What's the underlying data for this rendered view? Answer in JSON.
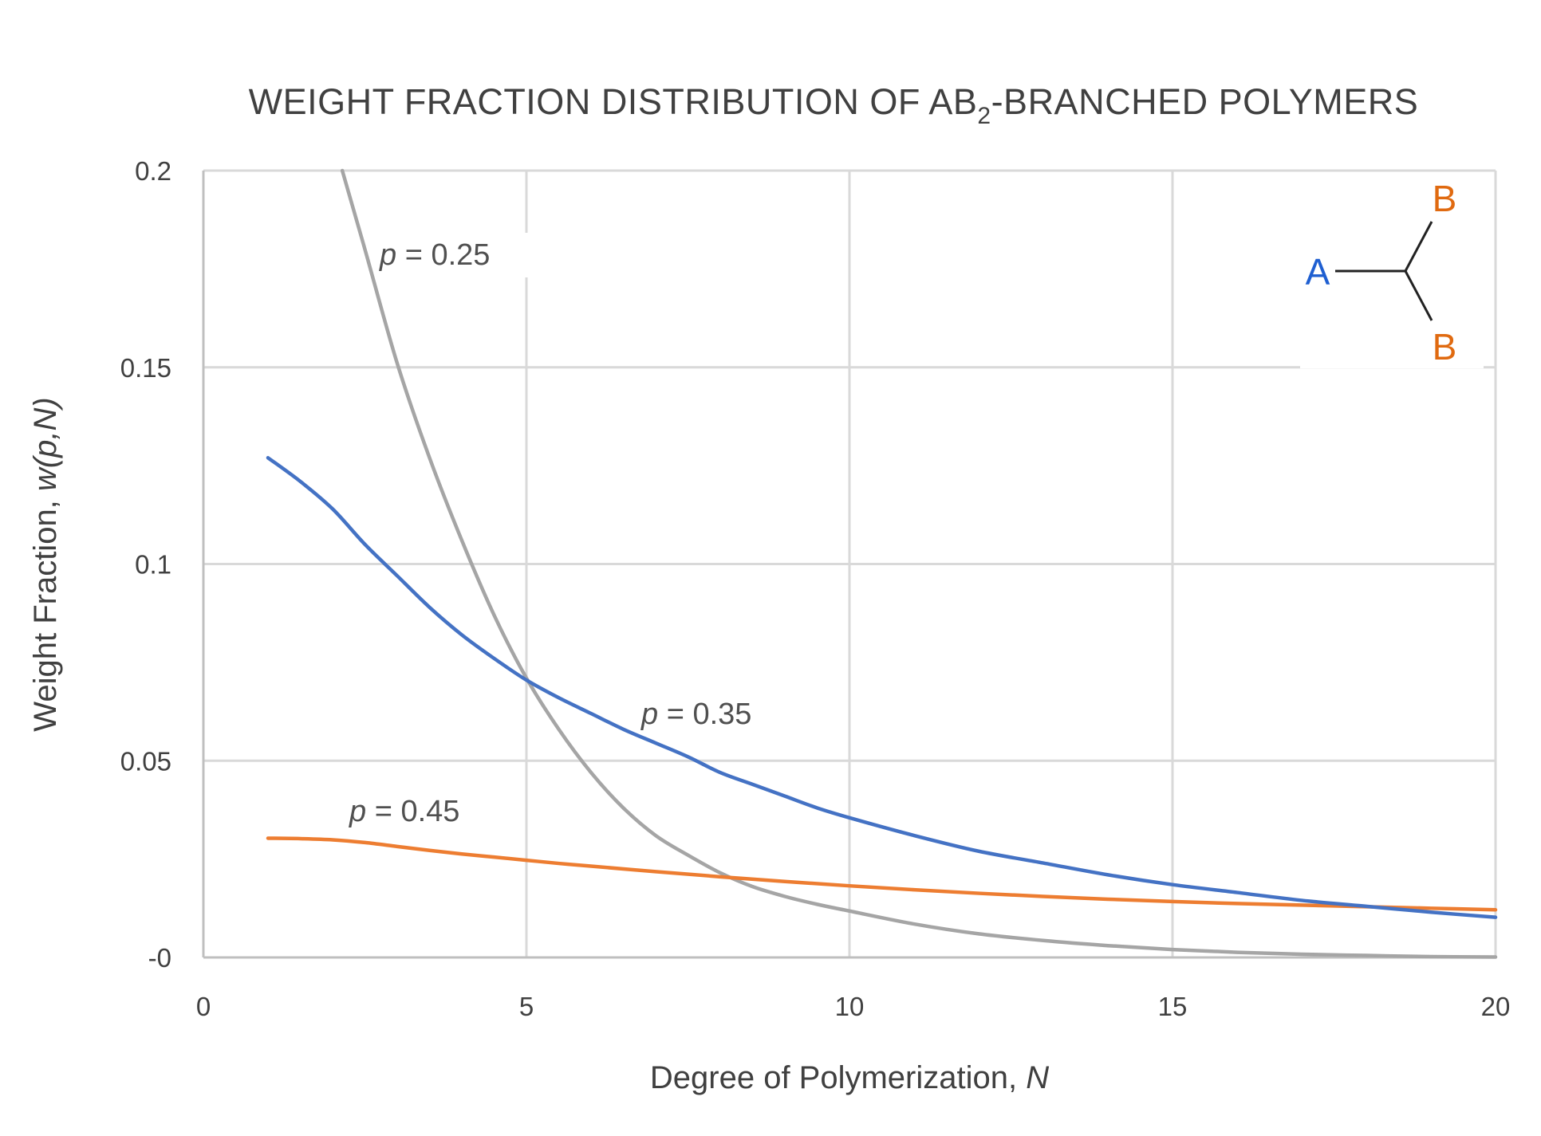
{
  "colors": {
    "p025": "#a5a5a5",
    "p035": "#4472c4",
    "p045": "#ed7d31",
    "atom_a": "#1f5fd1",
    "atom_b": "#e06a10",
    "text": "#404040"
  },
  "chart_data": {
    "type": "line",
    "title": {
      "main": "WEIGHT FRACTION DISTRIBUTION OF AB",
      "sub": "2",
      "rest": "-BRANCHED  POLYMERS"
    },
    "xlabel": {
      "text": "Degree of Polymerization, ",
      "var": "N"
    },
    "ylabel": {
      "text": "Weight Fraction, ",
      "var": "w(p,N)"
    },
    "xlim": [
      0,
      20
    ],
    "ylim": [
      0,
      0.2
    ],
    "x_ticks": [
      "0",
      "5",
      "10",
      "15",
      "20"
    ],
    "y_ticks": [
      "-0",
      "0.05",
      "0.1",
      "0.15",
      "0.2"
    ],
    "grid": true,
    "series": [
      {
        "name_var": "p",
        "name_rest": " = 0.25",
        "color_key": "p025",
        "x": [
          2.15,
          2.5,
          3,
          3.5,
          4,
          4.5,
          5,
          5.5,
          6,
          6.5,
          7,
          7.5,
          8,
          8.5,
          9,
          9.5,
          10,
          11,
          12,
          13,
          14,
          15,
          16,
          17,
          18,
          19,
          20
        ],
        "y": [
          0.2,
          0.18,
          0.151,
          0.127,
          0.106,
          0.087,
          0.071,
          0.058,
          0.047,
          0.038,
          0.031,
          0.026,
          0.0215,
          0.018,
          0.0155,
          0.0135,
          0.0118,
          0.0085,
          0.006,
          0.0043,
          0.003,
          0.002,
          0.0013,
          0.0008,
          0.0005,
          0.0002,
          0.0001
        ]
      },
      {
        "name_var": "p",
        "name_rest": " = 0.35",
        "color_key": "p035",
        "x": [
          1,
          1.5,
          2,
          2.5,
          3,
          3.5,
          4,
          4.5,
          5,
          5.5,
          6,
          6.5,
          7,
          7.5,
          8,
          8.5,
          9,
          9.5,
          10,
          11,
          12,
          13,
          14,
          15,
          16,
          17,
          18,
          19,
          20
        ],
        "y": [
          0.127,
          0.121,
          0.114,
          0.105,
          0.097,
          0.089,
          0.082,
          0.076,
          0.0705,
          0.066,
          0.062,
          0.058,
          0.0545,
          0.051,
          0.047,
          0.044,
          0.041,
          0.038,
          0.0355,
          0.031,
          0.027,
          0.024,
          0.021,
          0.0185,
          0.0165,
          0.0145,
          0.013,
          0.0115,
          0.0102
        ]
      },
      {
        "name_var": "p",
        "name_rest": " = 0.45",
        "color_key": "p045",
        "x": [
          1,
          1.5,
          2,
          2.5,
          3,
          3.5,
          4,
          4.5,
          5,
          5.5,
          6,
          7,
          8,
          9,
          10,
          11,
          12,
          13,
          14,
          15,
          16,
          17,
          18,
          19,
          20
        ],
        "y": [
          0.0303,
          0.0302,
          0.0299,
          0.0292,
          0.0282,
          0.0272,
          0.0263,
          0.0255,
          0.0247,
          0.0239,
          0.0232,
          0.0218,
          0.0205,
          0.0193,
          0.0182,
          0.0172,
          0.0163,
          0.0155,
          0.0148,
          0.0142,
          0.0137,
          0.0133,
          0.0129,
          0.0125,
          0.0121
        ]
      }
    ],
    "annotations": {
      "molecule": {
        "a": "A",
        "b_top": "B",
        "b_bottom": "B"
      }
    }
  }
}
